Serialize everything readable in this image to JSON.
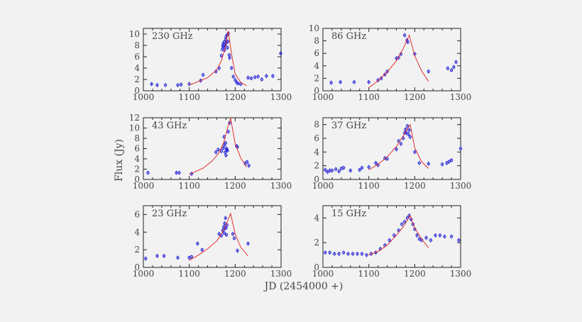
{
  "figure": {
    "ylabel": "Flux (Jy)",
    "xlabel": "JD (2454000 +)"
  },
  "colors": {
    "points": "#2a2ad8",
    "fit": "#e03030",
    "axis": "#222222"
  },
  "chart_data": [
    {
      "type": "scatter",
      "title": "230 GHz",
      "xlim": [
        1000,
        1300
      ],
      "ylim": [
        0,
        11
      ],
      "xticks": [
        1000,
        1100,
        1200,
        1300
      ],
      "yticks": [
        0,
        2,
        4,
        6,
        8,
        10
      ],
      "series": [
        {
          "kind": "points",
          "x": [
            1018,
            1030,
            1048,
            1075,
            1082,
            1100,
            1125,
            1130,
            1158,
            1165,
            1170,
            1172,
            1173,
            1174,
            1175,
            1176,
            1177,
            1178,
            1179,
            1180,
            1181,
            1182,
            1183,
            1184,
            1185,
            1187,
            1188,
            1192,
            1196,
            1200,
            1203,
            1206,
            1212,
            1228,
            1235,
            1243,
            1250,
            1258,
            1268,
            1282,
            1299
          ],
          "y": [
            1.2,
            1.0,
            1.0,
            1.0,
            1.1,
            1.2,
            1.8,
            2.8,
            3.4,
            4.0,
            6.2,
            7.3,
            7.9,
            8.3,
            7.8,
            8.6,
            7.2,
            8.0,
            9.0,
            9.5,
            8.5,
            9.8,
            7.6,
            8.7,
            10.1,
            6.3,
            5.8,
            4.0,
            2.5,
            1.9,
            1.5,
            1.3,
            1.2,
            2.3,
            2.2,
            2.4,
            2.5,
            2.0,
            2.6,
            2.6,
            6.6
          ]
        },
        {
          "kind": "fit",
          "x": [
            1100,
            1140,
            1160,
            1170,
            1178,
            1185,
            1192,
            1200,
            1212,
            1225
          ],
          "y": [
            1.0,
            2.3,
            3.7,
            5.3,
            7.5,
            10.6,
            6.5,
            3.0,
            1.5,
            0.9
          ]
        }
      ]
    },
    {
      "type": "scatter",
      "title": "86 GHz",
      "xlim": [
        1000,
        1300
      ],
      "ylim": [
        0,
        10
      ],
      "xticks": [
        1000,
        1100,
        1200,
        1300
      ],
      "yticks": [
        0,
        2,
        4,
        6,
        8,
        10
      ],
      "series": [
        {
          "kind": "points",
          "x": [
            1018,
            1038,
            1068,
            1100,
            1120,
            1127,
            1135,
            1140,
            1160,
            1165,
            1170,
            1178,
            1183,
            1185,
            1200,
            1230,
            1272,
            1280,
            1285,
            1290
          ],
          "y": [
            1.3,
            1.4,
            1.4,
            1.4,
            1.7,
            2.0,
            2.6,
            3.1,
            5.2,
            5.3,
            5.9,
            8.9,
            8.1,
            7.8,
            5.9,
            3.1,
            3.6,
            3.3,
            3.8,
            4.6
          ]
        },
        {
          "kind": "fit",
          "x": [
            1100,
            1120,
            1140,
            1160,
            1175,
            1188,
            1200,
            1215,
            1230
          ],
          "y": [
            0.5,
            1.6,
            3.0,
            4.8,
            6.8,
            8.9,
            5.6,
            3.2,
            1.5
          ]
        }
      ]
    },
    {
      "type": "scatter",
      "title": "43 GHz",
      "xlim": [
        1000,
        1300
      ],
      "ylim": [
        0,
        12
      ],
      "xticks": [
        1000,
        1100,
        1200,
        1300
      ],
      "yticks": [
        0,
        2,
        4,
        6,
        8,
        10,
        12
      ],
      "series": [
        {
          "kind": "points",
          "x": [
            1010,
            1072,
            1078,
            1105,
            1158,
            1163,
            1170,
            1174,
            1176,
            1177,
            1178,
            1179,
            1180,
            1181,
            1182,
            1183,
            1185,
            1188,
            1203,
            1205,
            1222,
            1226,
            1230
          ],
          "y": [
            1.3,
            1.3,
            1.3,
            1.1,
            5.3,
            5.8,
            5.5,
            6.1,
            8.3,
            6.7,
            5.3,
            7.1,
            4.7,
            6.0,
            5.8,
            5.6,
            9.3,
            11.0,
            6.5,
            6.3,
            3.1,
            3.4,
            2.7
          ]
        },
        {
          "kind": "fit",
          "x": [
            1100,
            1130,
            1150,
            1165,
            1175,
            1185,
            1190,
            1200,
            1212,
            1225
          ],
          "y": [
            1.0,
            2.2,
            3.6,
            5.2,
            7.2,
            10.5,
            11.9,
            7.0,
            4.2,
            2.4
          ]
        }
      ]
    },
    {
      "type": "scatter",
      "title": "37 GHz",
      "xlim": [
        1000,
        1300
      ],
      "ylim": [
        0,
        9
      ],
      "xticks": [
        1000,
        1100,
        1200,
        1300
      ],
      "yticks": [
        0,
        2,
        4,
        6,
        8
      ],
      "series": [
        {
          "kind": "points",
          "x": [
            1005,
            1010,
            1015,
            1020,
            1028,
            1035,
            1040,
            1045,
            1060,
            1080,
            1085,
            1100,
            1115,
            1120,
            1135,
            1140,
            1160,
            1165,
            1170,
            1175,
            1178,
            1180,
            1182,
            1184,
            1186,
            1188,
            1190,
            1200,
            1210,
            1230,
            1260,
            1270,
            1275,
            1280,
            1300
          ],
          "y": [
            1.4,
            1.1,
            1.3,
            1.3,
            1.5,
            1.2,
            1.6,
            1.7,
            1.3,
            1.4,
            1.7,
            1.8,
            2.4,
            2.1,
            3.1,
            3.0,
            4.4,
            5.6,
            5.2,
            6.0,
            6.8,
            7.3,
            6.8,
            7.8,
            6.6,
            7.2,
            6.2,
            4.0,
            2.4,
            2.3,
            2.2,
            2.4,
            2.6,
            2.8,
            4.5
          ]
        },
        {
          "kind": "fit",
          "x": [
            1100,
            1120,
            1140,
            1160,
            1175,
            1190,
            1200,
            1215,
            1230
          ],
          "y": [
            1.4,
            2.2,
            3.3,
            4.8,
            6.4,
            8.0,
            4.6,
            2.6,
            1.6
          ]
        }
      ]
    },
    {
      "type": "scatter",
      "title": "23 GHz",
      "xlim": [
        1000,
        1300
      ],
      "ylim": [
        0,
        7
      ],
      "xticks": [
        1000,
        1100,
        1200,
        1300
      ],
      "yticks": [
        0,
        2,
        4,
        6
      ],
      "series": [
        {
          "kind": "points",
          "x": [
            1005,
            1030,
            1045,
            1075,
            1100,
            1105,
            1118,
            1128,
            1165,
            1170,
            1173,
            1175,
            1176,
            1177,
            1178,
            1179,
            1180,
            1181,
            1182,
            1195,
            1198,
            1205,
            1228
          ],
          "y": [
            1.0,
            1.3,
            1.3,
            1.1,
            1.1,
            1.2,
            2.7,
            2.0,
            3.8,
            3.6,
            4.2,
            4.6,
            3.9,
            5.0,
            4.4,
            5.6,
            4.5,
            3.7,
            4.8,
            3.8,
            3.3,
            1.9,
            2.7
          ]
        },
        {
          "kind": "fit",
          "x": [
            1100,
            1120,
            1140,
            1160,
            1175,
            1190,
            1200,
            1212,
            1228
          ],
          "y": [
            0.8,
            1.4,
            2.1,
            3.0,
            4.2,
            6.1,
            3.8,
            2.3,
            1.3
          ]
        }
      ]
    },
    {
      "type": "scatter",
      "title": "15 GHz",
      "xlim": [
        1000,
        1300
      ],
      "ylim": [
        0,
        5
      ],
      "xticks": [
        1000,
        1100,
        1200,
        1300
      ],
      "yticks": [
        0,
        2,
        4
      ],
      "series": [
        {
          "kind": "points",
          "x": [
            1005,
            1015,
            1025,
            1035,
            1045,
            1055,
            1065,
            1075,
            1085,
            1095,
            1105,
            1115,
            1125,
            1135,
            1145,
            1155,
            1165,
            1172,
            1178,
            1184,
            1188,
            1192,
            1196,
            1200,
            1205,
            1210,
            1215,
            1225,
            1235,
            1245,
            1255,
            1265,
            1280,
            1296
          ],
          "y": [
            1.2,
            1.2,
            1.1,
            1.1,
            1.2,
            1.1,
            1.1,
            1.1,
            1.1,
            1.0,
            1.1,
            1.2,
            1.5,
            1.8,
            2.2,
            2.6,
            3.0,
            3.5,
            3.7,
            4.0,
            4.2,
            3.9,
            3.5,
            3.1,
            2.6,
            2.3,
            2.2,
            2.4,
            2.2,
            2.6,
            2.6,
            2.5,
            2.5,
            2.2
          ]
        },
        {
          "kind": "fit",
          "x": [
            1100,
            1120,
            1140,
            1160,
            1175,
            1190,
            1200,
            1215,
            1230
          ],
          "y": [
            1.0,
            1.3,
            1.8,
            2.6,
            3.3,
            4.2,
            3.2,
            2.3,
            1.6
          ]
        }
      ]
    }
  ]
}
